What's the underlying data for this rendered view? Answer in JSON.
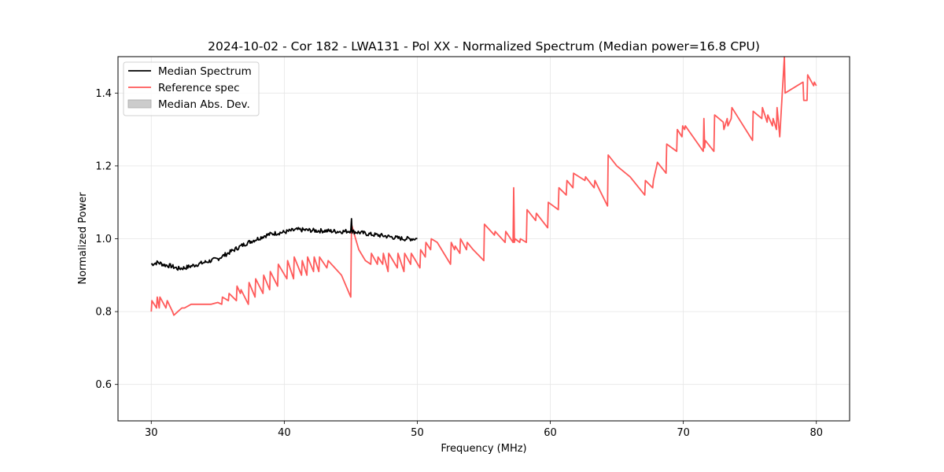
{
  "chart_data": {
    "type": "line",
    "title": "2024-10-02 - Cor 182 - LWA131 - Pol XX - Normalized Spectrum (Median power=16.8 CPU)",
    "xlabel": "Frequency (MHz)",
    "ylabel": "Normalized Power",
    "xlim": [
      27.5,
      82.5
    ],
    "ylim": [
      0.5,
      1.5
    ],
    "xticks": [
      30,
      40,
      50,
      60,
      70,
      80
    ],
    "yticks": [
      0.6,
      0.8,
      1.0,
      1.2,
      1.4
    ],
    "xtick_labels": [
      "30",
      "40",
      "50",
      "60",
      "70",
      "80"
    ],
    "ytick_labels": [
      "0.6",
      "0.8",
      "1.0",
      "1.2",
      "1.4"
    ],
    "grid": true,
    "legend": {
      "placement": "top-left",
      "entries": [
        {
          "label": "Median Spectrum",
          "color": "#000000",
          "kind": "line"
        },
        {
          "label": "Reference spec",
          "color": "#ff5a5a",
          "kind": "line"
        },
        {
          "label": "Median Abs. Dev.",
          "color": "#cccccc",
          "kind": "patch"
        }
      ]
    },
    "series": [
      {
        "name": "Median Spectrum",
        "color": "#000000",
        "noise": 0.006,
        "x": [
          30.0,
          30.5,
          31.0,
          31.5,
          32.0,
          32.5,
          33.0,
          33.5,
          34.0,
          34.5,
          35.0,
          35.5,
          36.0,
          36.5,
          37.0,
          37.5,
          38.0,
          38.5,
          39.0,
          39.5,
          40.0,
          40.5,
          41.0,
          41.5,
          42.0,
          42.5,
          43.0,
          43.5,
          44.0,
          44.5,
          45.0,
          45.05,
          45.1,
          45.5,
          46.0,
          46.5,
          47.0,
          47.5,
          48.0,
          48.5,
          49.0,
          49.5,
          50.0
        ],
        "y": [
          0.93,
          0.935,
          0.928,
          0.925,
          0.918,
          0.92,
          0.925,
          0.93,
          0.935,
          0.94,
          0.945,
          0.955,
          0.965,
          0.975,
          0.985,
          0.993,
          1.0,
          1.008,
          1.013,
          1.016,
          1.018,
          1.022,
          1.025,
          1.024,
          1.023,
          1.022,
          1.022,
          1.021,
          1.02,
          1.02,
          1.022,
          1.055,
          1.02,
          1.018,
          1.015,
          1.012,
          1.01,
          1.008,
          1.005,
          1.002,
          1.0,
          1.0,
          1.0
        ]
      },
      {
        "name": "Reference spec",
        "color": "#ff5a5a",
        "x": [
          30.0,
          30.05,
          30.4,
          30.45,
          30.6,
          30.65,
          31.1,
          31.2,
          31.6,
          31.7,
          32.0,
          32.3,
          32.5,
          33.0,
          33.5,
          34.0,
          34.5,
          35.0,
          35.3,
          35.35,
          35.8,
          35.85,
          36.4,
          36.45,
          36.7,
          36.75,
          37.3,
          37.35,
          37.8,
          37.85,
          38.4,
          38.45,
          38.9,
          38.95,
          39.5,
          39.55,
          40.2,
          40.25,
          40.7,
          40.75,
          41.3,
          41.35,
          41.7,
          41.75,
          42.2,
          42.25,
          42.6,
          42.65,
          43.2,
          43.3,
          43.8,
          44.3,
          45.0,
          45.05,
          45.2,
          45.6,
          46.1,
          46.5,
          46.55,
          47.0,
          47.05,
          47.4,
          47.45,
          47.8,
          47.85,
          48.5,
          48.55,
          49.0,
          49.05,
          49.5,
          49.55,
          50.2,
          50.25,
          50.6,
          50.65,
          51.0,
          51.05,
          51.5,
          52.5,
          52.55,
          52.8,
          52.85,
          53.2,
          53.25,
          53.7,
          53.75,
          54.2,
          55.0,
          55.05,
          55.8,
          55.85,
          56.6,
          56.65,
          57.2,
          57.25,
          57.3,
          57.35,
          57.7,
          57.75,
          58.2,
          58.25,
          58.9,
          58.95,
          59.8,
          59.85,
          60.6,
          60.65,
          61.2,
          61.25,
          61.7,
          61.75,
          62.6,
          62.65,
          63.3,
          63.35,
          64.3,
          64.35,
          65.0,
          66.0,
          67.1,
          67.15,
          67.7,
          67.75,
          68.0,
          68.05,
          68.7,
          68.75,
          69.5,
          69.55,
          69.9,
          69.95,
          70.1,
          70.15,
          71.5,
          71.55,
          71.6,
          71.65,
          72.3,
          72.35,
          73.0,
          73.05,
          73.3,
          73.35,
          73.6,
          73.65,
          75.2,
          75.25,
          75.9,
          75.95,
          76.3,
          76.35,
          76.7,
          76.75,
          77.0,
          77.05,
          77.2,
          77.25,
          77.6,
          77.65,
          79.0,
          79.05,
          79.3,
          79.35,
          79.8,
          79.85,
          80.0
        ],
        "y": [
          0.8,
          0.83,
          0.81,
          0.84,
          0.81,
          0.84,
          0.81,
          0.83,
          0.8,
          0.79,
          0.8,
          0.81,
          0.81,
          0.82,
          0.82,
          0.82,
          0.82,
          0.825,
          0.82,
          0.84,
          0.83,
          0.85,
          0.83,
          0.87,
          0.85,
          0.86,
          0.82,
          0.88,
          0.84,
          0.89,
          0.85,
          0.9,
          0.86,
          0.91,
          0.87,
          0.93,
          0.89,
          0.94,
          0.89,
          0.95,
          0.9,
          0.94,
          0.9,
          0.95,
          0.91,
          0.95,
          0.91,
          0.95,
          0.92,
          0.94,
          0.92,
          0.9,
          0.84,
          1.04,
          1.02,
          0.97,
          0.94,
          0.93,
          0.96,
          0.93,
          0.95,
          0.93,
          0.96,
          0.91,
          0.96,
          0.92,
          0.96,
          0.91,
          0.96,
          0.93,
          0.96,
          0.92,
          0.97,
          0.95,
          0.99,
          0.97,
          1.0,
          0.99,
          0.93,
          0.99,
          0.97,
          0.98,
          0.96,
          1.0,
          0.97,
          0.99,
          0.97,
          0.94,
          1.04,
          1.01,
          1.02,
          0.99,
          1.02,
          0.99,
          1.14,
          0.99,
          1.0,
          0.99,
          1.0,
          0.99,
          1.08,
          1.05,
          1.07,
          1.03,
          1.1,
          1.08,
          1.14,
          1.12,
          1.16,
          1.14,
          1.18,
          1.16,
          1.17,
          1.14,
          1.16,
          1.09,
          1.23,
          1.2,
          1.17,
          1.12,
          1.16,
          1.14,
          1.16,
          1.2,
          1.21,
          1.18,
          1.26,
          1.24,
          1.3,
          1.28,
          1.31,
          1.3,
          1.31,
          1.24,
          1.33,
          1.25,
          1.27,
          1.24,
          1.34,
          1.32,
          1.3,
          1.33,
          1.31,
          1.33,
          1.36,
          1.27,
          1.35,
          1.33,
          1.36,
          1.32,
          1.34,
          1.31,
          1.33,
          1.3,
          1.36,
          1.3,
          1.28,
          1.5,
          1.4,
          1.43,
          1.38,
          1.38,
          1.45,
          1.42,
          1.43,
          1.42
        ]
      }
    ]
  }
}
